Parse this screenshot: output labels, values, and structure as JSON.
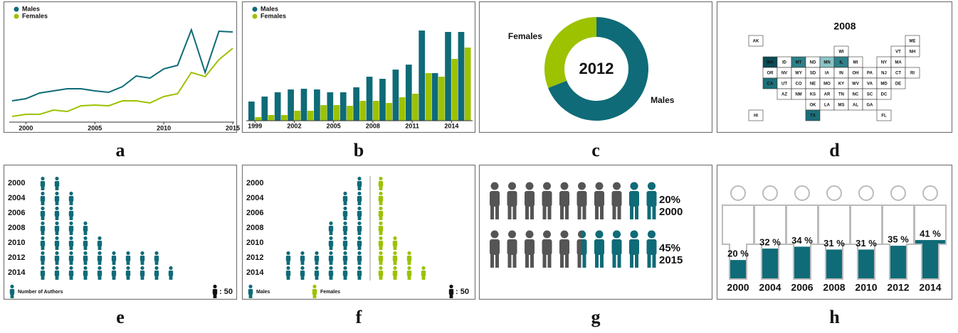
{
  "chart_data": [
    {
      "type": "line",
      "panel_label": "a",
      "x": [
        1999,
        2000,
        2001,
        2002,
        2003,
        2004,
        2005,
        2006,
        2007,
        2008,
        2009,
        2010,
        2011,
        2012,
        2013,
        2014,
        2015
      ],
      "xlim": [
        1999,
        2015
      ],
      "xticks": [
        2000,
        2005,
        2010,
        2015
      ],
      "ylim": [
        0,
        140
      ],
      "series": [
        {
          "name": "Males",
          "color": "#0f6b78",
          "values": [
            30,
            33,
            41,
            44,
            47,
            47,
            44,
            42,
            50,
            65,
            62,
            75,
            80,
            130,
            70,
            128,
            127
          ]
        },
        {
          "name": "Females",
          "color": "#9cc200",
          "values": [
            8,
            11,
            11,
            17,
            15,
            23,
            24,
            23,
            30,
            30,
            27,
            36,
            40,
            70,
            64,
            88,
            104
          ]
        }
      ]
    },
    {
      "type": "bar",
      "panel_label": "b",
      "x": [
        1999,
        2000,
        2001,
        2002,
        2003,
        2004,
        2005,
        2006,
        2007,
        2008,
        2009,
        2010,
        2011,
        2012,
        2013,
        2014,
        2015
      ],
      "xlim": [
        1998.5,
        2015.5
      ],
      "xticks": [
        1999,
        2002,
        2005,
        2008,
        2011,
        2014
      ],
      "ylim": [
        0,
        140
      ],
      "series": [
        {
          "name": "Males",
          "color": "#0f6b78",
          "values": [
            27,
            34,
            40,
            44,
            45,
            44,
            40,
            40,
            47,
            62,
            59,
            72,
            79,
            127,
            67,
            125,
            125
          ]
        },
        {
          "name": "Females",
          "color": "#9cc200",
          "values": [
            5,
            8,
            8,
            14,
            14,
            22,
            22,
            21,
            28,
            28,
            25,
            33,
            38,
            67,
            62,
            87,
            103
          ]
        }
      ]
    },
    {
      "type": "donut",
      "panel_label": "c",
      "center_label": "2012",
      "categories": [
        "Males",
        "Females"
      ],
      "values": [
        69,
        31
      ],
      "colors": [
        "#0f6b78",
        "#9cc200"
      ]
    },
    {
      "type": "map",
      "panel_label": "d",
      "title": "2008",
      "states": [
        "AK",
        "ME",
        "WI",
        "VT",
        "NH",
        "WA",
        "ID",
        "MT",
        "ND",
        "MN",
        "IL",
        "MI",
        "NY",
        "MA",
        "OR",
        "NV",
        "WY",
        "SD",
        "IA",
        "IN",
        "OH",
        "PA",
        "NJ",
        "CT",
        "RI",
        "CA",
        "UT",
        "CO",
        "NE",
        "MO",
        "KY",
        "WV",
        "VA",
        "MD",
        "DE",
        "AZ",
        "NM",
        "KS",
        "AR",
        "TN",
        "NC",
        "SC",
        "DC",
        "OK",
        "LA",
        "MS",
        "AL",
        "GA",
        "HI",
        "TX",
        "FL"
      ],
      "values": [
        0,
        0,
        0,
        0,
        0,
        4,
        0,
        2,
        0,
        1,
        2,
        0,
        0,
        0,
        0,
        0,
        0,
        0,
        0,
        0,
        0,
        0,
        0,
        0,
        0,
        3,
        0,
        0,
        0,
        0,
        0,
        0,
        0,
        0,
        0,
        0,
        0,
        0,
        0,
        0,
        0,
        0,
        0,
        0,
        0,
        0,
        0,
        0,
        0,
        3,
        0
      ],
      "colors": [
        "#ffffff",
        "#8cc3c6",
        "#2e8088",
        "#1c6f78",
        "#0b4b55"
      ]
    },
    {
      "type": "pictogram",
      "panel_label": "e",
      "legend": "Number of Authors",
      "color": "#0f6b78",
      "categories": [
        "2000",
        "2004",
        "2006",
        "2008",
        "2010",
        "2012",
        "2014"
      ],
      "values": [
        100,
        150,
        150,
        200,
        250,
        450,
        500
      ],
      "unit": {
        "value": 50,
        "label": ": 50"
      }
    },
    {
      "type": "pyramid",
      "panel_label": "f",
      "categories": [
        "2000",
        "2004",
        "2006",
        "2008",
        "2010",
        "2012",
        "2014"
      ],
      "series": [
        {
          "name": "Males",
          "color": "#0f6b78",
          "values": [
            50,
            100,
            100,
            150,
            150,
            300,
            300
          ]
        },
        {
          "name": "Females",
          "color": "#9cc200",
          "values": [
            50,
            50,
            50,
            50,
            100,
            150,
            200
          ]
        }
      ],
      "unit": {
        "value": 50,
        "label": ": 50"
      }
    },
    {
      "type": "iconarray",
      "panel_label": "g",
      "categories": [
        "2000",
        "2015"
      ],
      "values": [
        20,
        45
      ],
      "value_labels": [
        "20%",
        "45%"
      ],
      "colors": [
        "#555555",
        "#0f6b78"
      ]
    },
    {
      "type": "iconbar",
      "panel_label": "h",
      "color": "#0f6b78",
      "ylim": [
        0,
        100
      ],
      "categories": [
        "2000",
        "2004",
        "2006",
        "2008",
        "2010",
        "2012",
        "2014"
      ],
      "values": [
        20,
        32,
        34,
        31,
        31,
        35,
        41
      ],
      "value_labels": [
        "20 %",
        "32 %",
        "34 %",
        "31 %",
        "31 %",
        "35 %",
        "41 %"
      ]
    }
  ]
}
